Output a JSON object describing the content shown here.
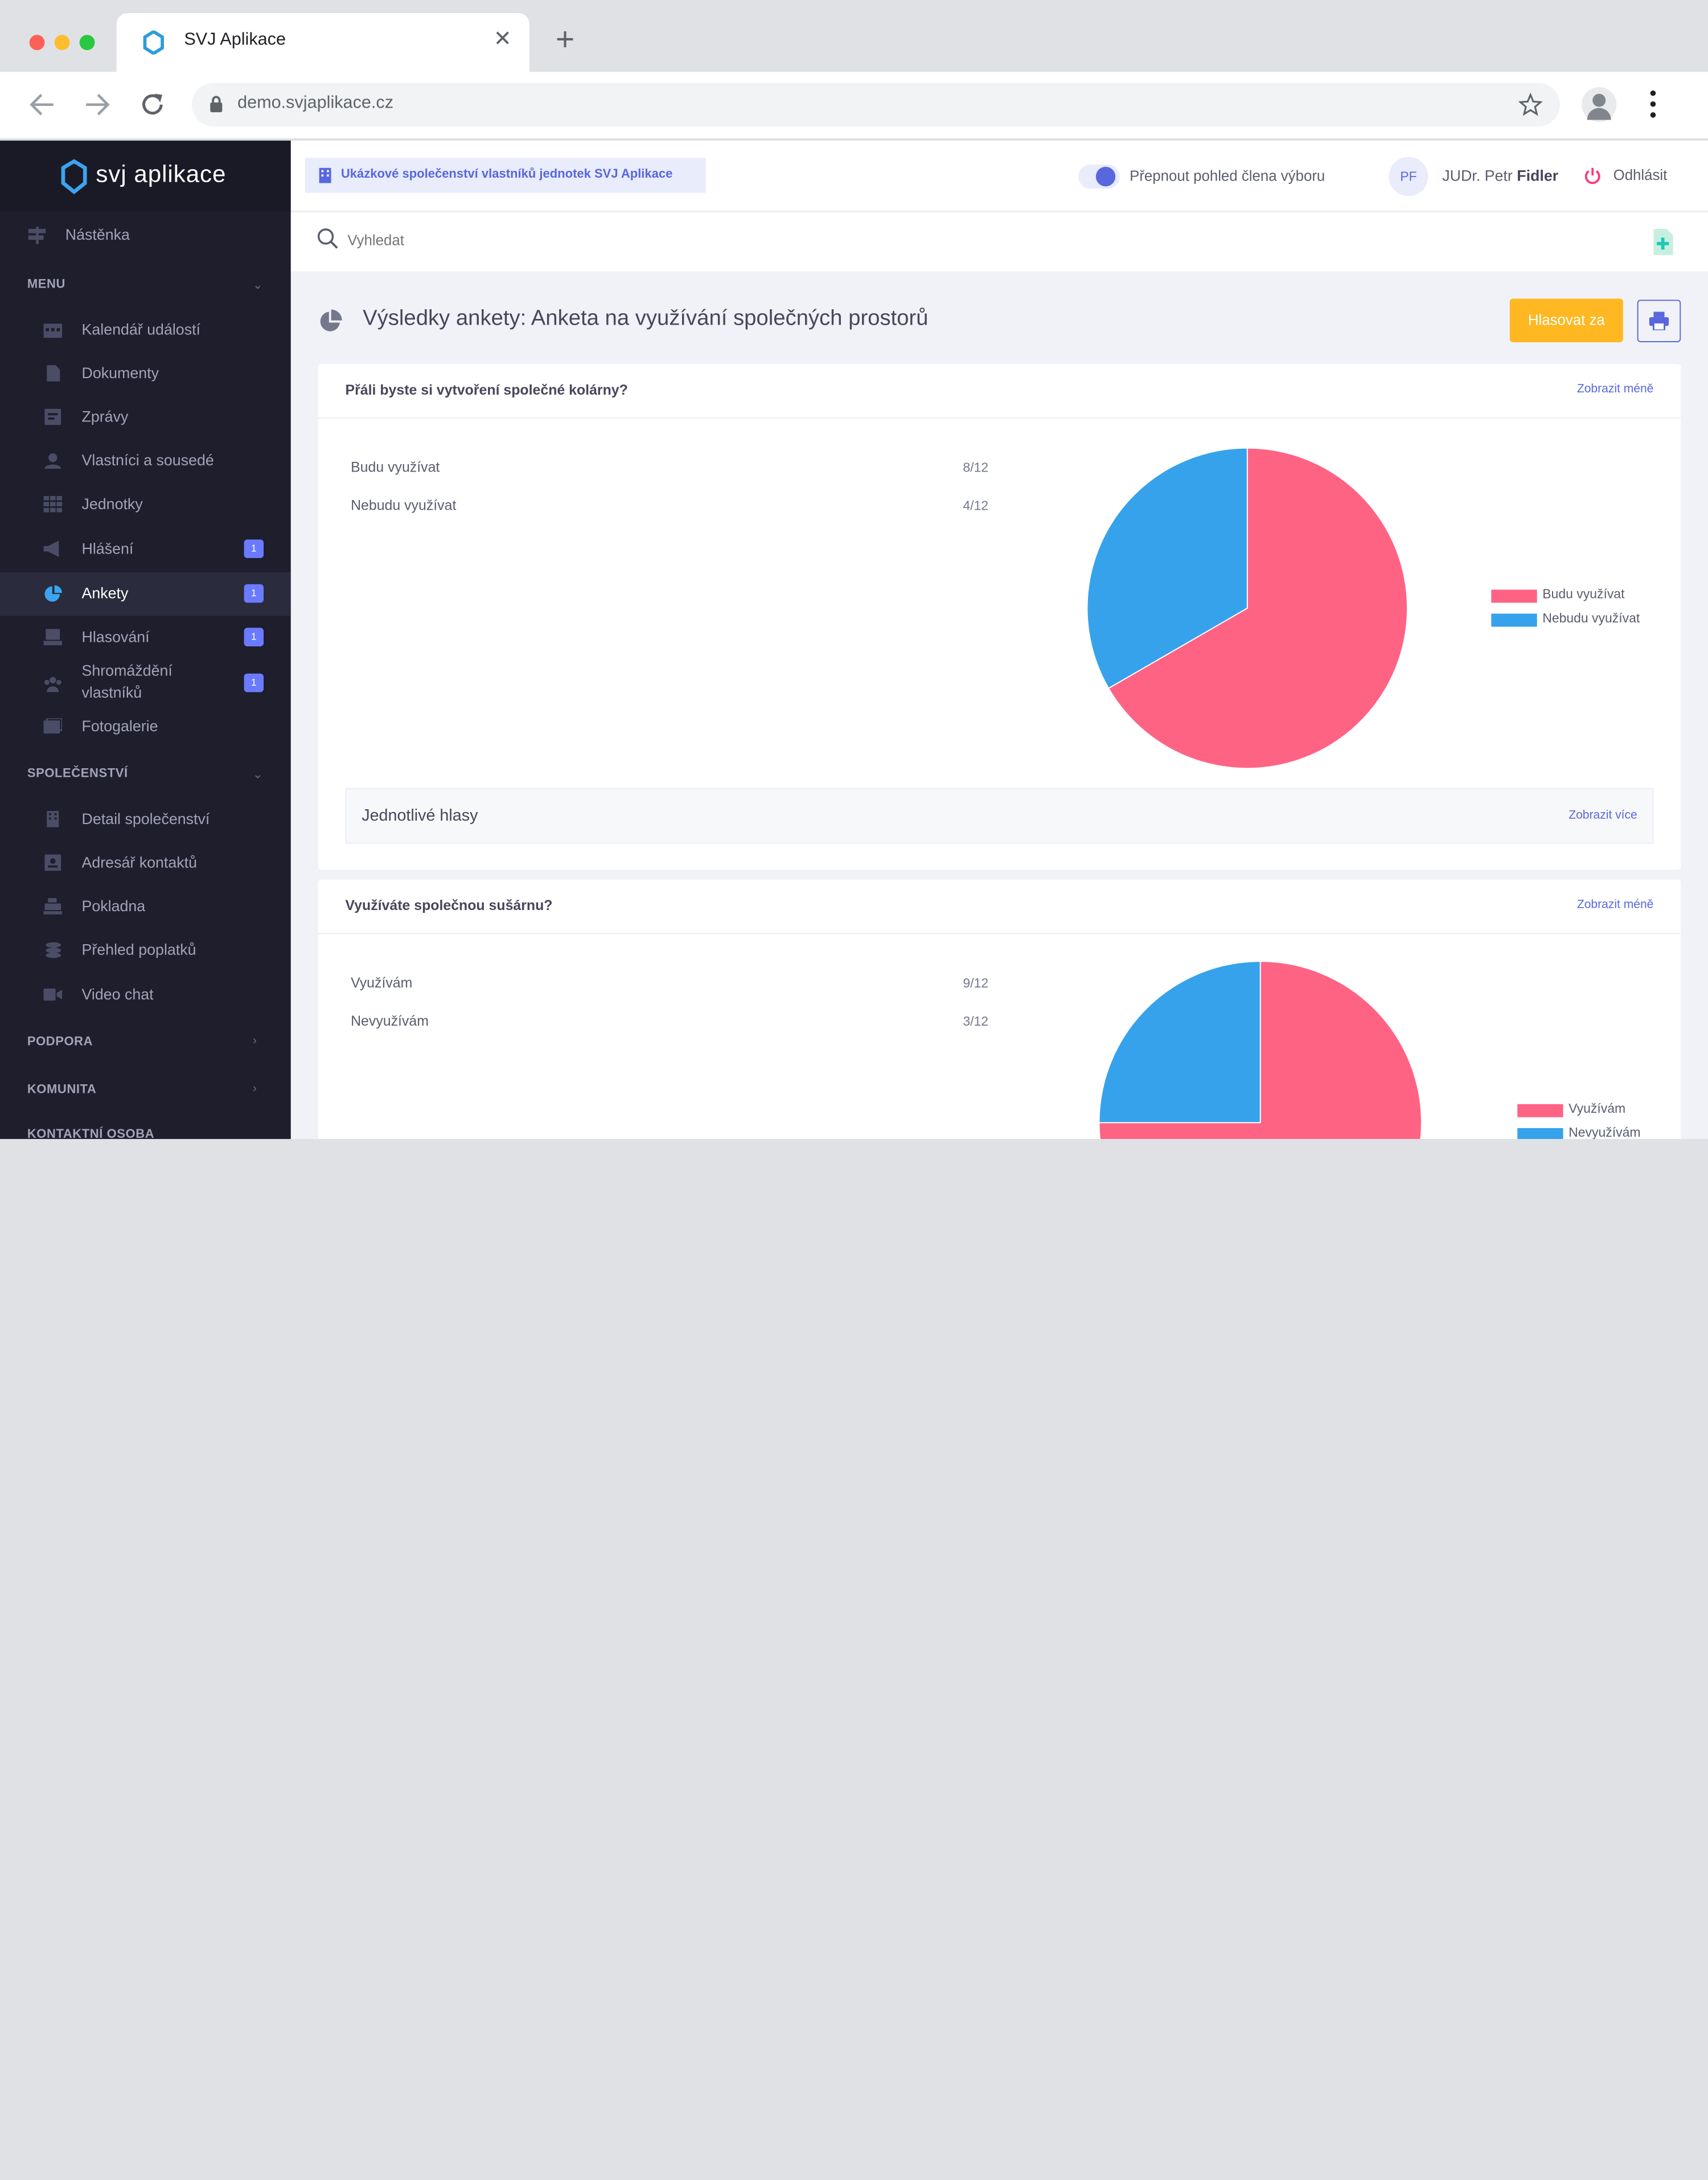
{
  "browser": {
    "tab_title": "SVJ Aplikace",
    "url": "demo.svjaplikace.cz"
  },
  "sidebar": {
    "logo_text": "svj aplikace",
    "dashboard": "Nástěnka",
    "sections": {
      "menu": "MENU",
      "community": "SPOLEČENSTVÍ",
      "support": "PODPORA",
      "komunita": "KOMUNITA",
      "contact": "KONTAKTNÍ OSOBA"
    },
    "menu_items": [
      {
        "label": "Kalendář událostí",
        "icon": "calendar-icon"
      },
      {
        "label": "Dokumenty",
        "icon": "document-icon"
      },
      {
        "label": "Zprávy",
        "icon": "news-icon"
      },
      {
        "label": "Vlastníci a sousedé",
        "icon": "user-icon"
      },
      {
        "label": "Jednotky",
        "icon": "grid-icon"
      },
      {
        "label": "Hlášení",
        "icon": "megaphone-icon",
        "badge": "1"
      },
      {
        "label": "Ankety",
        "icon": "pie-chart-icon",
        "badge": "1"
      },
      {
        "label": "Hlasování",
        "icon": "vote-icon",
        "badge": "1"
      },
      {
        "label": "Shromáždění",
        "label2": "vlastníků",
        "icon": "group-icon",
        "badge": "1"
      },
      {
        "label": "Fotogalerie",
        "icon": "gallery-icon"
      }
    ],
    "community_items": [
      {
        "label": "Detail společenství",
        "icon": "building-icon"
      },
      {
        "label": "Adresář kontaktů",
        "icon": "contacts-icon"
      },
      {
        "label": "Pokladna",
        "icon": "cash-register-icon"
      },
      {
        "label": "Přehled poplatků",
        "icon": "coins-icon"
      },
      {
        "label": "Video chat",
        "icon": "video-icon"
      }
    ]
  },
  "header": {
    "community_name": "Ukázkové společenství vlastníků jednotek SVJ Aplikace",
    "toggle_label": "Přepnout pohled člena výboru",
    "avatar_initials": "PF",
    "user_prefix": "JUDr. Petr",
    "user_surname": "Fidler",
    "logout": "Odhlásit"
  },
  "search": {
    "placeholder": "Vyhledat"
  },
  "page": {
    "title": "Výsledky ankety: Anketa na využívání společných prostorů",
    "vote_button": "Hlasovat za"
  },
  "colors": {
    "accent": "#5867dd",
    "yes": "#ff6384",
    "no": "#36a2eb",
    "vote_button": "#ffb822"
  },
  "polls": [
    {
      "question": "Přáli byste si vytvoření společné kolárny?",
      "toggle": "Zobrazit méně",
      "answers": [
        {
          "label": "Budu využívat",
          "score": "8/12"
        },
        {
          "label": "Nebudu využívat",
          "score": "4/12"
        }
      ],
      "votes_label": "Jednotlivé hlasy",
      "votes_more": "Zobrazit více"
    },
    {
      "question": "Využíváte společnou sušárnu?",
      "toggle": "Zobrazit méně",
      "answers": [
        {
          "label": "Využívám",
          "score": "9/12"
        },
        {
          "label": "Nevyužívám",
          "score": "3/12"
        }
      ]
    }
  ],
  "chart_data": [
    {
      "type": "pie",
      "categories": [
        "Budu využívat",
        "Nebudu využívat"
      ],
      "values": [
        8,
        4
      ],
      "colors": [
        "#ff6384",
        "#36a2eb"
      ],
      "legend": "right"
    },
    {
      "type": "pie",
      "categories": [
        "Využívám",
        "Nevyužívám"
      ],
      "values": [
        9,
        3
      ],
      "colors": [
        "#ff6384",
        "#36a2eb"
      ],
      "legend": "right"
    }
  ]
}
